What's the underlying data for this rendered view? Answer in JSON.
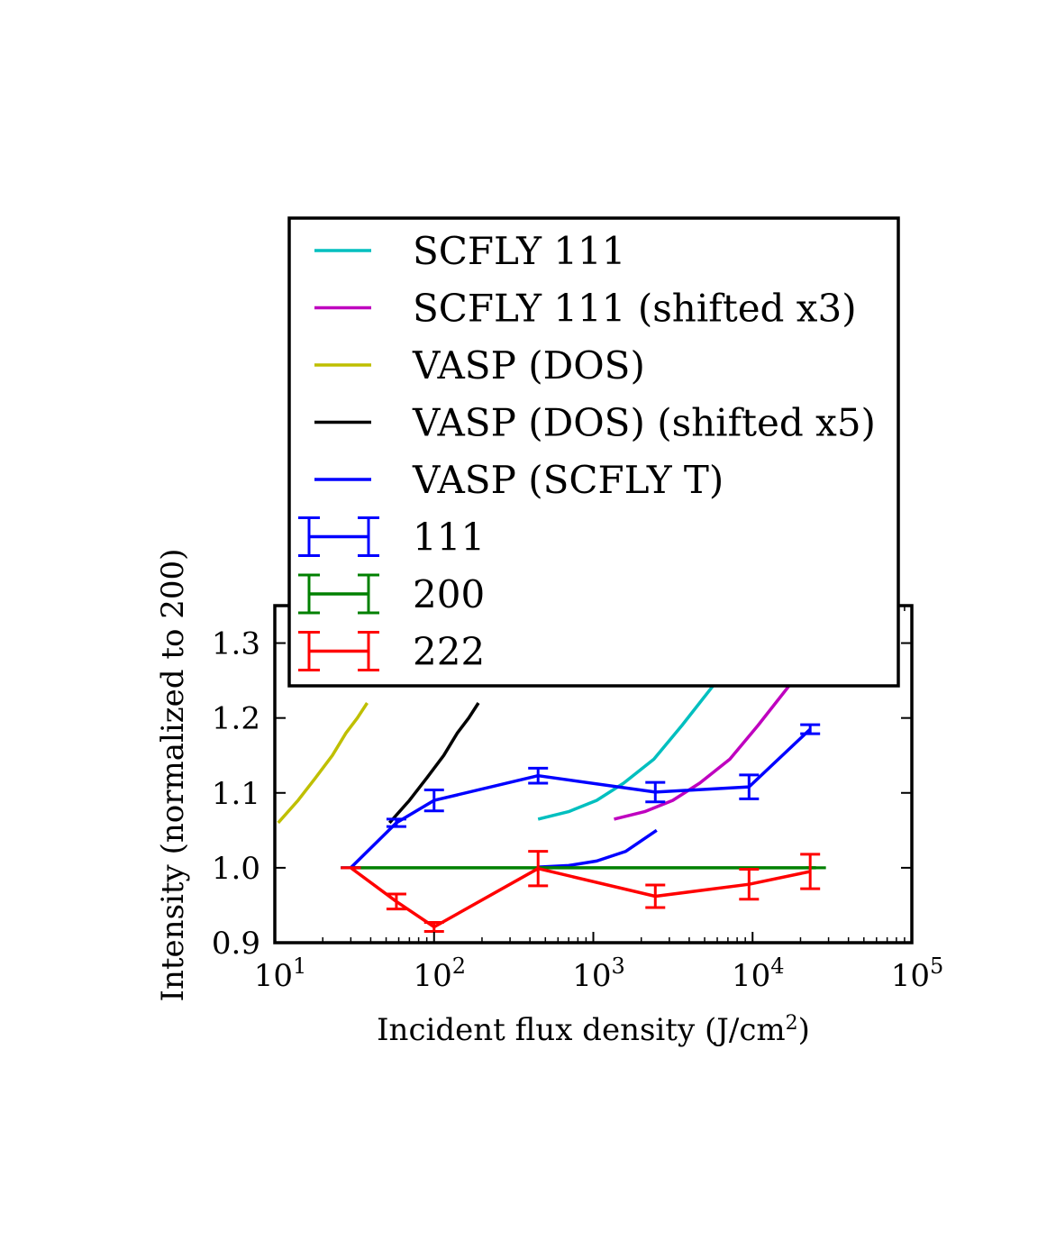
{
  "chart_data": {
    "type": "line",
    "xscale": "log",
    "xlim": [
      10,
      100000
    ],
    "ylim": [
      0.9,
      1.35
    ],
    "xlabel": "Incident flux density (J/cm",
    "xlabel_sup": "2",
    "xlabel_suffix": ")",
    "ylabel": "Intensity (normalized to 200)",
    "xticks": [
      {
        "base": "10",
        "exp": "1",
        "value": 10
      },
      {
        "base": "10",
        "exp": "2",
        "value": 100
      },
      {
        "base": "10",
        "exp": "3",
        "value": 1000
      },
      {
        "base": "10",
        "exp": "4",
        "value": 10000
      },
      {
        "base": "10",
        "exp": "5",
        "value": 100000
      }
    ],
    "yticks": [
      {
        "label": "0.9",
        "value": 0.9
      },
      {
        "label": "1.0",
        "value": 1.0
      },
      {
        "label": "1.1",
        "value": 1.1
      },
      {
        "label": "1.2",
        "value": 1.2
      },
      {
        "label": "1.3",
        "value": 1.3
      }
    ],
    "grid": false,
    "legend_position": "upper-center",
    "series": [
      {
        "name": "SCFLY 111",
        "color": "#00bfbf",
        "kind": "line",
        "x": [
          450,
          700,
          1050,
          1550,
          2400,
          3600,
          6000
        ],
        "y": [
          1.065,
          1.075,
          1.09,
          1.113,
          1.145,
          1.19,
          1.25
        ]
      },
      {
        "name": "SCFLY 111 (shifted x3)",
        "color": "#bf00bf",
        "kind": "line",
        "x": [
          1350,
          2100,
          3150,
          4650,
          7200,
          10800,
          18000
        ],
        "y": [
          1.065,
          1.075,
          1.09,
          1.113,
          1.145,
          1.19,
          1.25
        ]
      },
      {
        "name": "VASP (DOS)",
        "color": "#bfbf00",
        "kind": "line",
        "x": [
          10.5,
          14,
          18,
          23,
          28,
          33,
          38
        ],
        "y": [
          1.06,
          1.09,
          1.12,
          1.15,
          1.18,
          1.2,
          1.22
        ]
      },
      {
        "name": "VASP (DOS) (shifted x5)",
        "color": "#000000",
        "kind": "line",
        "x": [
          52.5,
          70,
          90,
          115,
          140,
          165,
          190
        ],
        "y": [
          1.06,
          1.09,
          1.12,
          1.15,
          1.18,
          1.2,
          1.22
        ]
      },
      {
        "name": "VASP (SCFLY T)",
        "color": "#0000ff",
        "kind": "line",
        "x": [
          450,
          700,
          1050,
          1600,
          2500
        ],
        "y": [
          1.001,
          1.003,
          1.009,
          1.022,
          1.05
        ]
      },
      {
        "name": "111",
        "color": "#0000ff",
        "kind": "errorbar",
        "x": [
          30,
          58,
          100,
          450,
          2450,
          9500,
          23000
        ],
        "y": [
          1.0,
          1.06,
          1.09,
          1.123,
          1.101,
          1.108,
          1.185
        ],
        "yerr": [
          0,
          0.005,
          0.014,
          0.01,
          0.013,
          0.016,
          0.006
        ]
      },
      {
        "name": "200",
        "color": "#008000",
        "kind": "errorbar",
        "x": [
          30,
          25000
        ],
        "y": [
          1.0,
          1.0
        ],
        "yerr": [
          0,
          0
        ]
      },
      {
        "name": "222",
        "color": "#ff0000",
        "kind": "errorbar",
        "x": [
          30,
          58,
          100,
          450,
          2450,
          9500,
          23000
        ],
        "y": [
          1.0,
          0.955,
          0.921,
          0.999,
          0.962,
          0.978,
          0.995
        ],
        "yerr": [
          0,
          0.01,
          0.006,
          0.023,
          0.015,
          0.02,
          0.023
        ]
      }
    ]
  }
}
